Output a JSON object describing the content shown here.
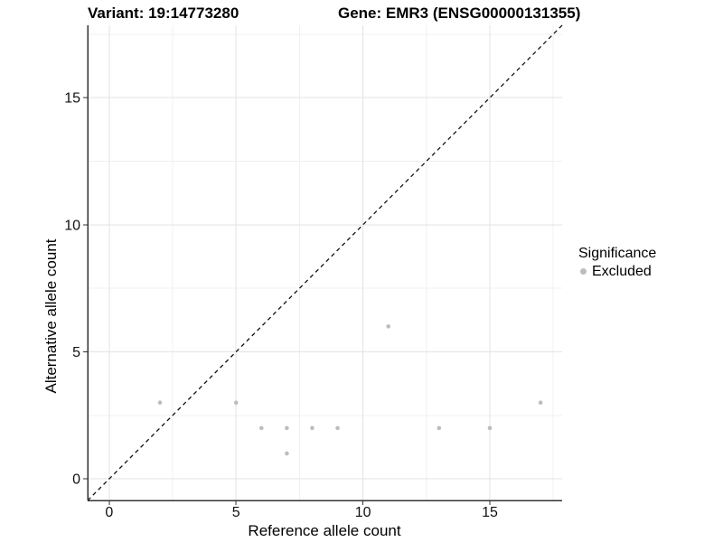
{
  "chart_data": {
    "type": "scatter",
    "title_variant": "Variant: 19:14773280",
    "title_gene": "Gene: EMR3 (ENSG00000131355)",
    "xlabel": "Reference allele count",
    "ylabel": "Alternative allele count",
    "xlim": [
      -0.85,
      17.85
    ],
    "ylim": [
      -0.85,
      17.85
    ],
    "x_major_ticks": [
      0,
      5,
      10,
      15
    ],
    "y_major_ticks": [
      0,
      5,
      10,
      15
    ],
    "x_minor_ticks": [
      2.5,
      7.5,
      12.5,
      17.5
    ],
    "y_minor_ticks": [
      2.5,
      7.5,
      12.5,
      17.5
    ],
    "grid": "on",
    "legend_position": "right-center",
    "identity_line": {
      "style": "dashed",
      "slope": 1,
      "intercept": 0,
      "color": "#111111"
    },
    "series": [
      {
        "name": "Excluded",
        "color": "#bdbdbd",
        "points": [
          [
            2,
            3
          ],
          [
            5,
            3
          ],
          [
            6,
            2
          ],
          [
            7,
            1
          ],
          [
            7,
            2
          ],
          [
            8,
            2
          ],
          [
            9,
            2
          ],
          [
            11,
            6
          ],
          [
            13,
            2
          ],
          [
            15,
            2
          ],
          [
            17,
            3
          ]
        ]
      }
    ],
    "legend": {
      "title": "Significance"
    }
  }
}
